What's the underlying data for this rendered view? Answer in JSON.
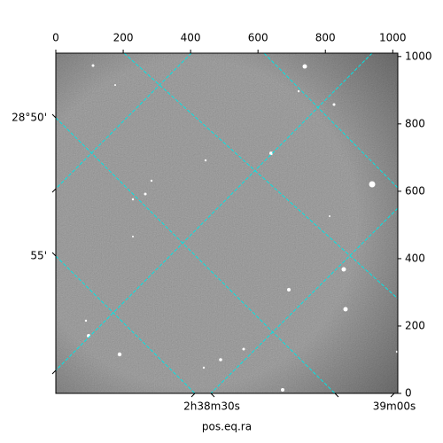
{
  "chart_data": {
    "type": "image",
    "xlabel": "pos.eq.ra",
    "xlim": [
      0,
      1015
    ],
    "xticks": [
      0,
      200,
      400,
      600,
      800,
      1000
    ],
    "ylim": [
      0,
      1010
    ],
    "yticks": [
      0,
      200,
      400,
      600,
      800,
      1000
    ],
    "ra_ticks": [
      "2h38m30s",
      "39m00s"
    ],
    "dec_ticks": [
      "28°50'",
      "55'"
    ],
    "grid_color": "#00e5e5"
  }
}
